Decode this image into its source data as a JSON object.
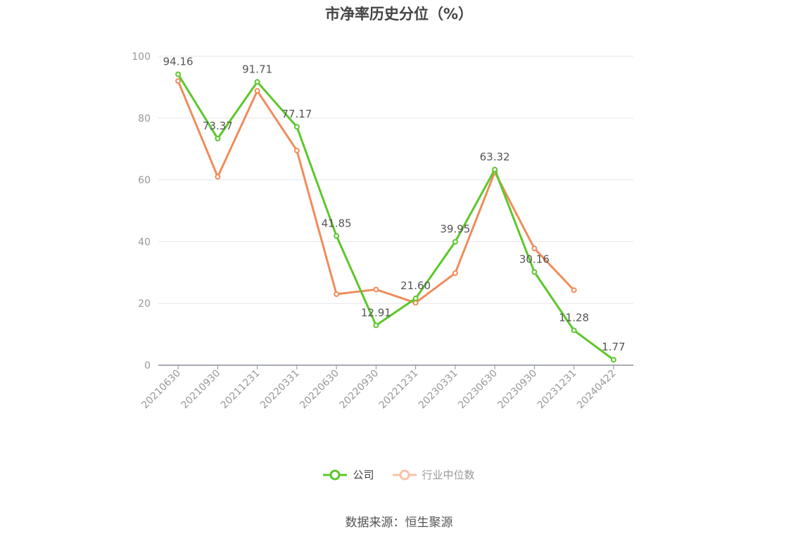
{
  "chart_data": {
    "type": "line",
    "title": "市净率历史分位（%）",
    "categories": [
      "20210630",
      "20210930",
      "20211231",
      "20220331",
      "20220630",
      "20220930",
      "20221231",
      "20230331",
      "20230630",
      "20230930",
      "20231231",
      "20240422"
    ],
    "ylim": [
      0,
      100
    ],
    "yticks": [
      0,
      20,
      40,
      60,
      80,
      100
    ],
    "grid": true,
    "legend_position": "bottom",
    "series": [
      {
        "name": "公司",
        "color": "#5cc72a",
        "values": [
          94.16,
          73.37,
          91.71,
          77.17,
          41.85,
          12.91,
          21.6,
          39.95,
          63.32,
          30.16,
          11.28,
          1.77
        ],
        "labels": [
          "94.16",
          "73.37",
          "91.71",
          "77.17",
          "41.85",
          "12.91",
          "21.60",
          "39.95",
          "63.32",
          "30.16",
          "11.28",
          "1.77"
        ]
      },
      {
        "name": "行业中位数",
        "color": "#f08c5a",
        "values": [
          92.0,
          61.0,
          88.8,
          69.5,
          23.0,
          24.5,
          20.2,
          29.8,
          62.5,
          37.8,
          24.3,
          null
        ]
      }
    ]
  },
  "footer": {
    "source": "数据来源：恒生聚源"
  }
}
